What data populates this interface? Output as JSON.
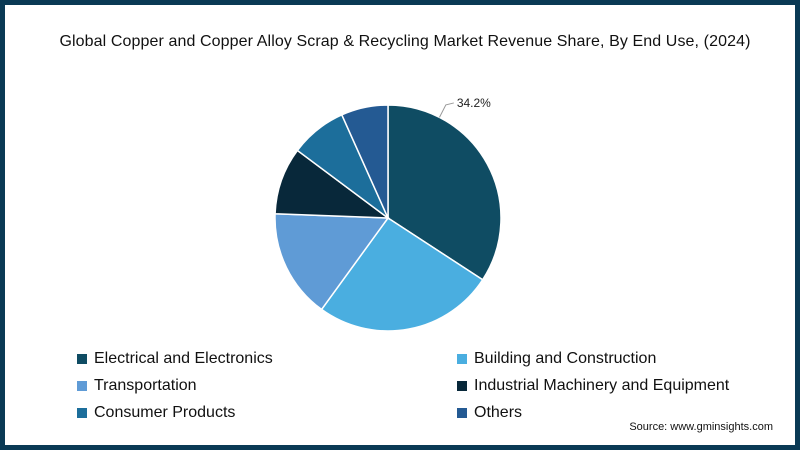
{
  "chart_data": {
    "type": "pie",
    "title": "Global Copper and Copper Alloy Scrap & Recycling Market Revenue Share, By End Use,  (2024)",
    "start_angle_deg": 0,
    "direction": "clockwise",
    "slices": [
      {
        "label": "Electrical and Electronics",
        "value": 34.2,
        "color": "#0f4c63",
        "data_label": "34.2%"
      },
      {
        "label": "Building and Construction",
        "value": 25.8,
        "color": "#4aaee0",
        "data_label": ""
      },
      {
        "label": "Transportation",
        "value": 15.6,
        "color": "#5f9bd6",
        "data_label": ""
      },
      {
        "label": "Industrial Machinery and Equipment",
        "value": 9.6,
        "color": "#08283a",
        "data_label": ""
      },
      {
        "label": "Consumer Products",
        "value": 8.1,
        "color": "#1c6e9b",
        "data_label": ""
      },
      {
        "label": "Others",
        "value": 6.7,
        "color": "#245a93",
        "data_label": ""
      }
    ],
    "legend_position": "bottom"
  },
  "source": "Source: www.gminsights.com",
  "colors": {
    "border": "#0a3a55",
    "slice_stroke": "#ffffff",
    "leader_line": "#999999"
  }
}
